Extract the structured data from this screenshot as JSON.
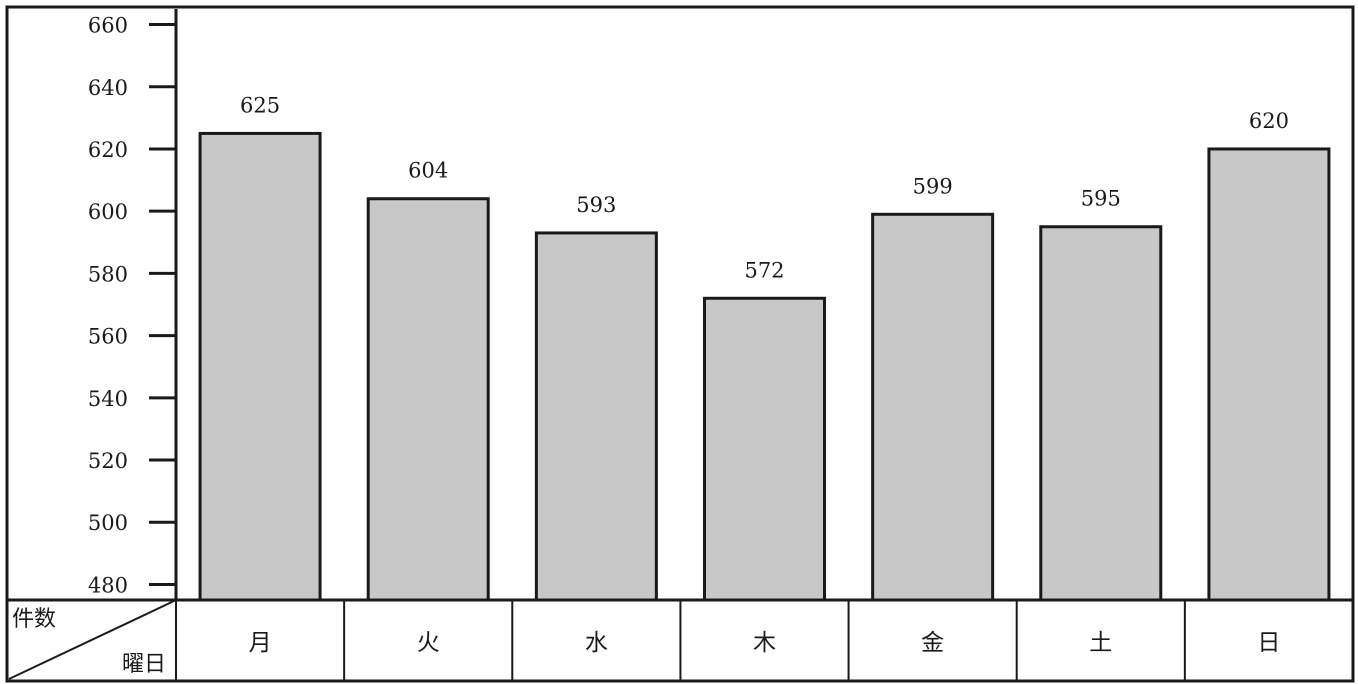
{
  "chart_data": {
    "type": "bar",
    "categories": [
      "月",
      "火",
      "水",
      "木",
      "金",
      "土",
      "日"
    ],
    "values": [
      625,
      604,
      593,
      572,
      599,
      595,
      620
    ],
    "data_labels": [
      "625",
      "604",
      "593",
      "572",
      "599",
      "595",
      "620"
    ],
    "ylim": [
      475,
      665
    ],
    "yticks": [
      480,
      500,
      520,
      540,
      560,
      580,
      600,
      620,
      640,
      660
    ],
    "grid": false,
    "corner_header": {
      "top_left": "件数",
      "bottom_right": "曜日"
    },
    "colors": {
      "bar_fill": "#c8c8c8",
      "bar_stroke": "#1a1a1a",
      "frame": "#1a1a1a",
      "background": "#ffffff"
    }
  }
}
